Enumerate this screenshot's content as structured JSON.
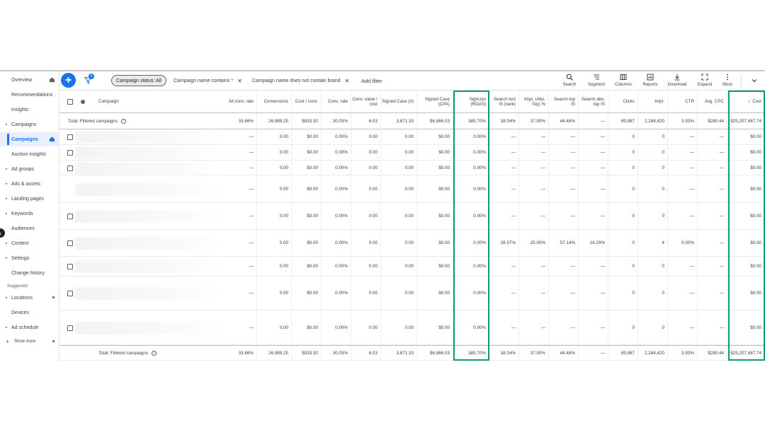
{
  "sidebar": {
    "items": [
      {
        "label": "Overview",
        "caret": false,
        "home": true,
        "active": false,
        "dot": false
      },
      {
        "label": "Recommendations",
        "caret": false,
        "home": false,
        "active": false,
        "dot": false
      },
      {
        "label": "Insights",
        "caret": false,
        "home": false,
        "active": false,
        "dot": false
      },
      {
        "label": "Campaigns",
        "caret": true,
        "home": false,
        "active": false,
        "dot": false
      },
      {
        "label": "Campaigns",
        "caret": false,
        "home": true,
        "active": true,
        "dot": false
      },
      {
        "label": "Auction insights",
        "caret": false,
        "home": false,
        "active": false,
        "dot": false
      },
      {
        "label": "Ad groups",
        "caret": true,
        "home": false,
        "active": false,
        "dot": false
      },
      {
        "label": "Ads & assets",
        "caret": true,
        "home": false,
        "active": false,
        "dot": false
      },
      {
        "label": "Landing pages",
        "caret": true,
        "home": false,
        "active": false,
        "dot": false
      },
      {
        "label": "Keywords",
        "caret": true,
        "home": false,
        "active": false,
        "dot": false
      },
      {
        "label": "Audiences",
        "caret": false,
        "home": false,
        "active": false,
        "dot": false
      },
      {
        "label": "Content",
        "caret": true,
        "home": false,
        "active": false,
        "dot": false
      },
      {
        "label": "Settings",
        "caret": true,
        "home": false,
        "active": false,
        "dot": false
      },
      {
        "label": "Change history",
        "caret": false,
        "home": false,
        "active": false,
        "dot": false
      }
    ],
    "suggested_label": "Suggested",
    "suggested_items": [
      {
        "label": "Locations",
        "caret": true,
        "dot": true
      },
      {
        "label": "Devices",
        "caret": false,
        "dot": false
      },
      {
        "label": "Ad schedule",
        "caret": true,
        "dot": false
      }
    ],
    "show_more": "Show more"
  },
  "toolbar": {
    "filter_count": "3",
    "chips": [
      {
        "label": "Campaign status: All",
        "selected": true,
        "closable": false
      },
      {
        "label": "Campaign name contains *",
        "selected": false,
        "closable": true
      },
      {
        "label": "Campaign name does not contain brand",
        "selected": false,
        "closable": true
      }
    ],
    "add_filter": "Add filter",
    "tools": [
      {
        "label": "Search",
        "icon": "search-icon"
      },
      {
        "label": "Segment",
        "icon": "segment-icon"
      },
      {
        "label": "Columns",
        "icon": "columns-icon"
      },
      {
        "label": "Reports",
        "icon": "reports-icon"
      },
      {
        "label": "Download",
        "icon": "download-icon"
      },
      {
        "label": "Expand",
        "icon": "expand-icon"
      },
      {
        "label": "More",
        "icon": "more-icon"
      }
    ]
  },
  "table": {
    "campaign_header": "Campaign",
    "columns": [
      {
        "key": "all_conv_rate",
        "label": "All conv. rate"
      },
      {
        "key": "conversions",
        "label": "Conversions"
      },
      {
        "key": "cost_conv",
        "label": "Cost / conv."
      },
      {
        "key": "conv_rate",
        "label": "Conv. rate"
      },
      {
        "key": "conv_value_cost",
        "label": "Conv. value / cost"
      },
      {
        "key": "signed_case_num",
        "label": "Signed Case (#)"
      },
      {
        "key": "signed_case_cpa",
        "label": "Signed Case (CPA)"
      },
      {
        "key": "signups_roas",
        "label": "SignUps (ROAS)"
      },
      {
        "key": "search_lost_is",
        "label": "Search lost IS (rank)"
      },
      {
        "key": "impr_abs_top",
        "label": "Impr. (Abs. Top) %"
      },
      {
        "key": "search_top_is",
        "label": "Search top IS"
      },
      {
        "key": "search_abs_top_is",
        "label": "Search abs. top IS"
      },
      {
        "key": "clicks",
        "label": "Clicks"
      },
      {
        "key": "impr",
        "label": "Impr."
      },
      {
        "key": "ctr",
        "label": "CTR"
      },
      {
        "key": "avg_cpc",
        "label": "Avg. CPC"
      },
      {
        "key": "cost",
        "label": "Cost"
      }
    ],
    "total_label": "Total: Filtered campaigns",
    "total": [
      "33.66%",
      "26,989.25",
      "$933.92",
      "30.03%",
      "6.03",
      "3,671.33",
      "$6,866.03",
      "385.70%",
      "38.04%",
      "37.90%",
      "44.48%",
      "—",
      "89,887",
      "2,284,420",
      "3.93%",
      "$280.44",
      "$25,207,487.74"
    ],
    "rows": [
      {
        "checkbox": true,
        "values": [
          "—",
          "0.00",
          "$0.00",
          "0.00%",
          "0.00",
          "0.00",
          "$0.00",
          "0.00%",
          "—",
          "—",
          "—",
          "—",
          "0",
          "0",
          "—",
          "—",
          "$0.00"
        ]
      },
      {
        "checkbox": true,
        "values": [
          "—",
          "0.00",
          "$0.00",
          "0.00%",
          "0.00",
          "0.00",
          "$0.00",
          "0.00%",
          "—",
          "—",
          "—",
          "—",
          "0",
          "0",
          "—",
          "—",
          "$0.00"
        ]
      },
      {
        "checkbox": true,
        "values": [
          "—",
          "0.00",
          "$0.00",
          "0.00%",
          "0.00",
          "0.00",
          "$0.00",
          "0.00%",
          "—",
          "—",
          "—",
          "—",
          "0",
          "0",
          "—",
          "—",
          "$0.00"
        ]
      },
      {
        "checkbox": false,
        "values": [
          "—",
          "0.00",
          "$0.00",
          "0.00%",
          "0.00",
          "0.00",
          "$0.00",
          "0.00%",
          "—",
          "—",
          "—",
          "—",
          "0",
          "0",
          "—",
          "—",
          "$0.00"
        ]
      },
      {
        "checkbox": true,
        "values": [
          "—",
          "0.00",
          "$0.00",
          "0.00%",
          "0.00",
          "0.00",
          "$0.00",
          "0.00%",
          "—",
          "—",
          "—",
          "—",
          "0",
          "0",
          "—",
          "—",
          "$0.00"
        ]
      },
      {
        "checkbox": true,
        "values": [
          "—",
          "0.00",
          "$0.00",
          "0.00%",
          "0.00",
          "0.00",
          "$0.00",
          "0.00%",
          "28.57%",
          "25.00%",
          "57.14%",
          "14.29%",
          "0",
          "4",
          "0.00%",
          "—",
          "$0.00"
        ]
      },
      {
        "checkbox": true,
        "values": [
          "—",
          "0.00",
          "$0.00",
          "0.00%",
          "0.00",
          "0.00",
          "$0.00",
          "0.00%",
          "—",
          "—",
          "—",
          "—",
          "0",
          "0",
          "—",
          "—",
          "$0.00"
        ]
      },
      {
        "checkbox": true,
        "values": [
          "—",
          "0.00",
          "$0.00",
          "0.00%",
          "0.00",
          "0.00",
          "$0.00",
          "0.00%",
          "—",
          "—",
          "—",
          "—",
          "0",
          "0",
          "—",
          "—",
          "$0.00"
        ]
      },
      {
        "checkbox": true,
        "values": [
          "—",
          "0.00",
          "$0.00",
          "0.00%",
          "0.00",
          "0.00",
          "$0.00",
          "0.00%",
          "—",
          "—",
          "—",
          "—",
          "0",
          "0",
          "—",
          "—",
          "$0.00"
        ]
      }
    ],
    "footer_total": [
      "33.66%",
      "26,989.25",
      "$933.92",
      "30.03%",
      "6.03",
      "3,671.33",
      "$6,866.03",
      "385.70%",
      "38.04%",
      "37.90%",
      "44.48%",
      "—",
      "89,887",
      "2,284,420",
      "3.93%",
      "$280.44",
      "$25,207,487.74"
    ]
  },
  "colors": {
    "accent": "#1a73e8",
    "highlight_box": "#109d6a",
    "alert_dot": "#d93025"
  }
}
